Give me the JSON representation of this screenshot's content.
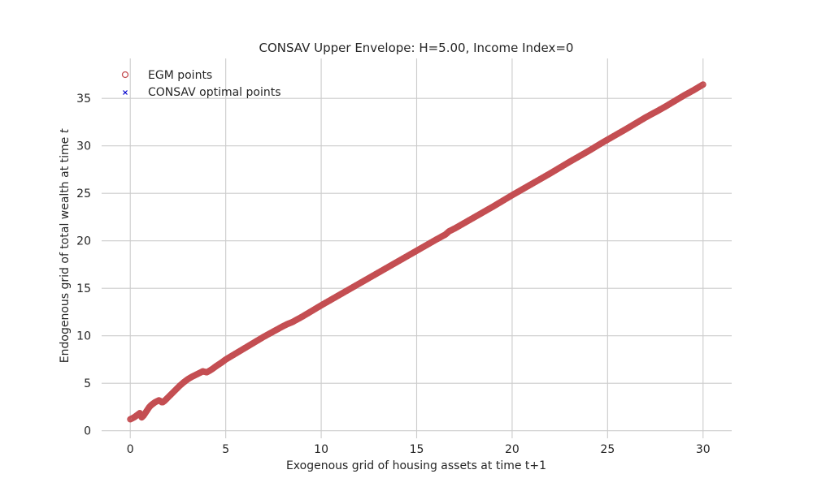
{
  "chart_data": {
    "type": "scatter",
    "title": "CONSAV Upper Envelope: H=5.00, Income Index=0",
    "xlabel": "Exogenous grid of housing assets at time t+1",
    "ylabel_prefix": "Endogenous grid of total wealth at time ",
    "ylabel_var": "t",
    "xlim": [
      -1.5,
      31.5
    ],
    "ylim": [
      -0.8,
      39.2
    ],
    "xticks": [
      0,
      5,
      10,
      15,
      20,
      25,
      30
    ],
    "yticks": [
      0,
      5,
      10,
      15,
      20,
      25,
      30,
      35
    ],
    "grid": true,
    "legend_position": "top-left",
    "series": [
      {
        "name": "EGM points",
        "marker": "circle-open",
        "color": "#c44e52",
        "x": [
          0.0,
          0.1,
          0.2,
          0.3,
          0.4,
          0.5,
          0.55,
          0.6,
          0.7,
          0.8,
          0.9,
          1.0,
          1.1,
          1.2,
          1.3,
          1.4,
          1.5,
          1.6,
          1.65,
          1.7,
          1.8,
          1.9,
          2.0,
          2.2,
          2.4,
          2.6,
          2.8,
          3.0,
          3.2,
          3.4,
          3.6,
          3.8,
          3.9,
          4.0,
          4.1,
          4.3,
          4.5,
          4.8,
          5.0,
          5.5,
          6.0,
          6.5,
          7.0,
          7.5,
          8.0,
          8.2,
          8.5,
          9.0,
          9.5,
          10.0,
          11.0,
          12.0,
          13.0,
          14.0,
          15.0,
          16.0,
          16.5,
          16.7,
          17.0,
          18.0,
          19.0,
          20.0,
          21.0,
          22.0,
          23.0,
          24.0,
          24.7,
          25.0,
          26.0,
          27.0,
          27.6,
          28.0,
          28.5,
          29.0,
          29.5,
          30.0
        ],
        "y": [
          1.2,
          1.3,
          1.4,
          1.55,
          1.7,
          1.85,
          1.6,
          1.4,
          1.6,
          1.9,
          2.2,
          2.5,
          2.7,
          2.85,
          3.0,
          3.1,
          3.2,
          3.1,
          3.0,
          3.0,
          3.15,
          3.35,
          3.55,
          3.95,
          4.35,
          4.75,
          5.1,
          5.4,
          5.65,
          5.85,
          6.05,
          6.25,
          6.2,
          6.15,
          6.25,
          6.5,
          6.8,
          7.2,
          7.5,
          8.1,
          8.7,
          9.3,
          9.9,
          10.45,
          11.0,
          11.2,
          11.45,
          12.0,
          12.6,
          13.2,
          14.35,
          15.5,
          16.65,
          17.8,
          18.95,
          20.1,
          20.65,
          21.0,
          21.3,
          22.45,
          23.6,
          24.8,
          25.95,
          27.1,
          28.3,
          29.45,
          30.3,
          30.65,
          31.8,
          33.0,
          33.65,
          34.1,
          34.7,
          35.3,
          35.85,
          36.45
        ]
      },
      {
        "name": "CONSAV optimal points",
        "marker": "x",
        "color": "#0000cc",
        "x": [],
        "y": []
      }
    ]
  }
}
